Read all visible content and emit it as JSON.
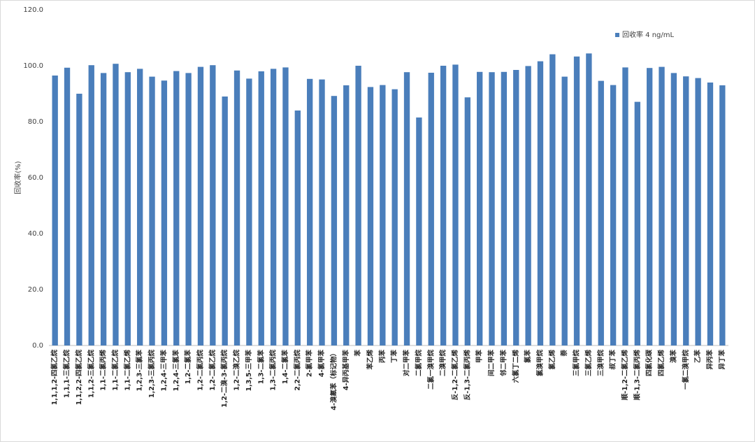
{
  "chart_data": {
    "type": "bar",
    "y_label": "回收率(%)",
    "legend_position": "top-right",
    "ylim": [
      0,
      120
    ],
    "yticks": [
      {
        "value": 0,
        "label": "0.0"
      },
      {
        "value": 20,
        "label": "20.0"
      },
      {
        "value": 40,
        "label": "40.0"
      },
      {
        "value": 60,
        "label": "60.0"
      },
      {
        "value": 80,
        "label": "80.0"
      },
      {
        "value": 100,
        "label": "100.0"
      },
      {
        "value": 120,
        "label": "120.0"
      }
    ],
    "grid": false,
    "categories": [
      "1,1,1,2-四氯乙烷",
      "1,1,1-三氯乙烷",
      "1,1,2,2-四氯乙烷",
      "1,1,2-三氯乙烷",
      "1,1-二氯丙烯",
      "1,1-二氯乙烷",
      "1,1-二氯乙烯",
      "1,2,3-三氯苯",
      "1,2,3-三氯丙烷",
      "1,2,4-三甲苯",
      "1,2,4-三氯苯",
      "1,2-二氯苯",
      "1,2-二氯丙烷",
      "1,2-二氯乙烷",
      "1,2-二溴-3-氯丙烷",
      "1,2-二溴乙烷",
      "1,3,5-三甲苯",
      "1,3-二氯苯",
      "1,3-二氯丙烷",
      "1,4-二氯苯",
      "2,2-二氯丙烷",
      "2-氯甲苯",
      "4-氯甲苯",
      "4-溴氟苯（标记物）",
      "4-异丙基甲苯",
      "苯",
      "苯乙烯",
      "丙苯",
      "丁苯",
      "对二甲苯",
      "二氯甲烷",
      "二氯一溴甲烷",
      "二溴甲烷",
      "反-1,2-二氯乙烯",
      "反-1,3-二氯丙烯",
      "甲苯",
      "间二甲苯",
      "邻二甲苯",
      "六氯丁二烯",
      "氯苯",
      "氯溴甲烷",
      "氯乙烯",
      "萘",
      "三氯甲烷",
      "三氯乙烯",
      "三溴甲烷",
      "叔丁苯",
      "顺-1,2-二氯乙烯",
      "顺-1,3-二氯丙烯",
      "四氯化碳",
      "四氯乙烯",
      "溴苯",
      "一氯二溴甲烷",
      "乙苯",
      "异丙苯",
      "异丁苯"
    ],
    "series": [
      {
        "name": "回收率 4 ng/mL",
        "color": "#4a7ebb",
        "values": [
          96.5,
          99.3,
          90.0,
          100.2,
          97.4,
          100.7,
          97.7,
          98.9,
          96.1,
          94.7,
          98.1,
          97.4,
          99.6,
          100.2,
          89.0,
          98.3,
          95.4,
          98.0,
          98.9,
          99.4,
          84.0,
          95.3,
          95.1,
          89.2,
          93.0,
          100.0,
          92.4,
          93.1,
          91.6,
          97.7,
          81.5,
          97.5,
          100.0,
          100.4,
          88.7,
          97.8,
          97.7,
          97.8,
          98.5,
          99.9,
          101.6,
          104.1,
          96.1,
          103.3,
          104.4,
          94.6,
          93.1,
          99.4,
          87.1,
          99.2,
          99.6,
          97.4,
          96.2,
          95.6,
          94.0,
          93.0
        ]
      }
    ]
  }
}
